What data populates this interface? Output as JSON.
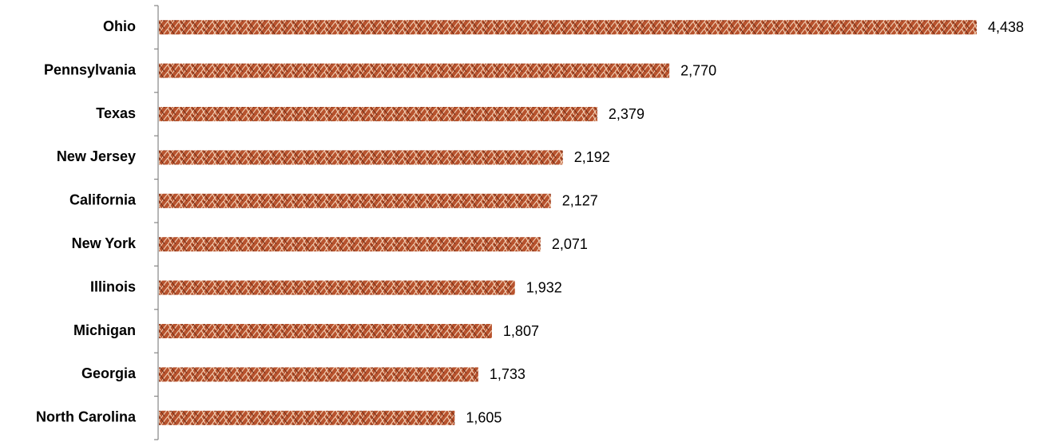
{
  "chart_data": {
    "type": "bar",
    "orientation": "horizontal",
    "color": "#b8532e",
    "categories": [
      "Ohio",
      "Pennsylvania",
      "Texas",
      "New Jersey",
      "California",
      "New York",
      "Illinois",
      "Michigan",
      "Georgia",
      "North Carolina"
    ],
    "values": [
      4438,
      2770,
      2379,
      2192,
      2127,
      2071,
      1932,
      1807,
      1733,
      1605
    ],
    "value_labels": [
      "4,438",
      "2,770",
      "2,379",
      "2,192",
      "2,127",
      "2,071",
      "1,932",
      "1,807",
      "1,733",
      "1,605"
    ]
  }
}
